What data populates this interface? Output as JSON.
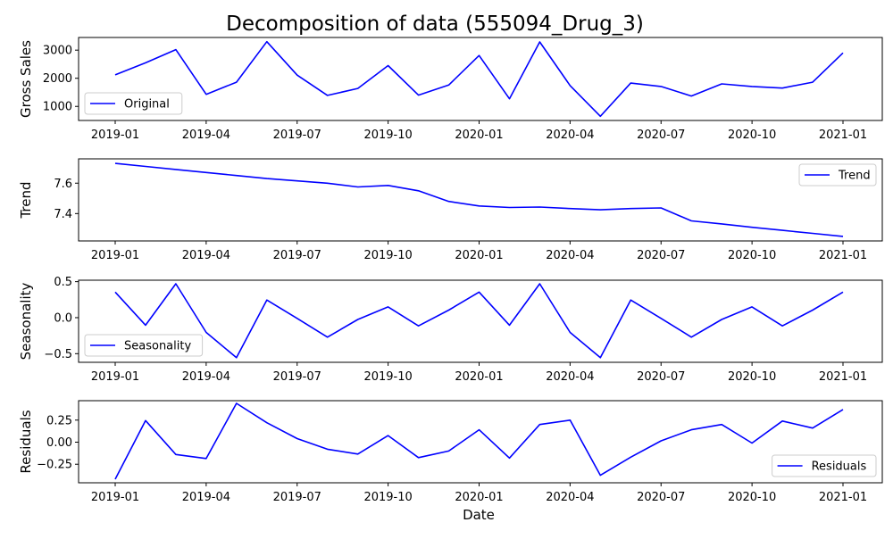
{
  "title": "Decomposition of data (555094_Drug_3)",
  "xlabel": "Date",
  "chart_data": [
    {
      "type": "line",
      "ylabel": "Gross Sales",
      "legend": {
        "label": "Original",
        "placement": "lower-left"
      },
      "color": "#0000ff",
      "x": [
        "2019-01",
        "2019-02",
        "2019-03",
        "2019-04",
        "2019-05",
        "2019-06",
        "2019-07",
        "2019-08",
        "2019-09",
        "2019-10",
        "2019-11",
        "2019-12",
        "2020-01",
        "2020-02",
        "2020-03",
        "2020-04",
        "2020-05",
        "2020-06",
        "2020-07",
        "2020-08",
        "2020-09",
        "2020-10",
        "2020-11",
        "2020-12",
        "2021-01"
      ],
      "values": [
        2120,
        2550,
        3020,
        1430,
        1860,
        3300,
        2110,
        1390,
        1640,
        2450,
        1400,
        1760,
        2810,
        1270,
        3290,
        1740,
        650,
        1830,
        1710,
        1370,
        1800,
        1710,
        1650,
        1860,
        2900
      ],
      "ylim": [
        500,
        3450
      ],
      "yticks": [
        1000,
        2000,
        3000
      ],
      "ytick_labels": [
        "1000",
        "2000",
        "3000"
      ]
    },
    {
      "type": "line",
      "ylabel": "Trend",
      "legend": {
        "label": "Trend",
        "placement": "upper-right"
      },
      "color": "#0000ff",
      "x": [
        "2019-01",
        "2019-02",
        "2019-03",
        "2019-04",
        "2019-05",
        "2019-06",
        "2019-07",
        "2019-08",
        "2019-09",
        "2019-10",
        "2019-11",
        "2019-12",
        "2020-01",
        "2020-02",
        "2020-03",
        "2020-04",
        "2020-05",
        "2020-06",
        "2020-07",
        "2020-08",
        "2020-09",
        "2020-10",
        "2020-11",
        "2020-12",
        "2021-01"
      ],
      "values": [
        7.73,
        7.71,
        7.69,
        7.67,
        7.65,
        7.63,
        7.615,
        7.6,
        7.575,
        7.585,
        7.55,
        7.48,
        7.45,
        7.44,
        7.443,
        7.433,
        7.425,
        7.433,
        7.437,
        7.352,
        7.332,
        7.31,
        7.29,
        7.27,
        7.25
      ],
      "ylim": [
        7.22,
        7.76
      ],
      "yticks": [
        7.4,
        7.6
      ],
      "ytick_labels": [
        "7.4",
        "7.6"
      ]
    },
    {
      "type": "line",
      "ylabel": "Seasonality",
      "legend": {
        "label": "Seasonality",
        "placement": "lower-left"
      },
      "color": "#0000ff",
      "x": [
        "2019-01",
        "2019-02",
        "2019-03",
        "2019-04",
        "2019-05",
        "2019-06",
        "2019-07",
        "2019-08",
        "2019-09",
        "2019-10",
        "2019-11",
        "2019-12",
        "2020-01",
        "2020-02",
        "2020-03",
        "2020-04",
        "2020-05",
        "2020-06",
        "2020-07",
        "2020-08",
        "2020-09",
        "2020-10",
        "2020-11",
        "2020-12",
        "2021-01"
      ],
      "values": [
        0.355,
        -0.105,
        0.47,
        -0.205,
        -0.555,
        0.245,
        -0.01,
        -0.27,
        -0.025,
        0.15,
        -0.115,
        0.105,
        0.355,
        -0.105,
        0.47,
        -0.205,
        -0.555,
        0.245,
        -0.01,
        -0.27,
        -0.025,
        0.15,
        -0.115,
        0.105,
        0.355
      ],
      "ylim": [
        -0.62,
        0.52
      ],
      "yticks": [
        -0.5,
        0.0,
        0.5
      ],
      "ytick_labels": [
        "−0.5",
        "0.0",
        "0.5"
      ]
    },
    {
      "type": "line",
      "ylabel": "Residuals",
      "legend": {
        "label": "Residuals",
        "placement": "lower-right"
      },
      "color": "#0000ff",
      "x": [
        "2019-01",
        "2019-02",
        "2019-03",
        "2019-04",
        "2019-05",
        "2019-06",
        "2019-07",
        "2019-08",
        "2019-09",
        "2019-10",
        "2019-11",
        "2019-12",
        "2020-01",
        "2020-02",
        "2020-03",
        "2020-04",
        "2020-05",
        "2020-06",
        "2020-07",
        "2020-08",
        "2020-09",
        "2020-10",
        "2020-11",
        "2020-12",
        "2021-01"
      ],
      "values": [
        -0.42,
        0.245,
        -0.14,
        -0.185,
        0.44,
        0.22,
        0.04,
        -0.08,
        -0.135,
        0.075,
        -0.175,
        -0.1,
        0.14,
        -0.18,
        0.2,
        0.25,
        -0.375,
        -0.17,
        0.015,
        0.14,
        0.2,
        -0.01,
        0.24,
        0.16,
        0.37
      ],
      "ylim": [
        -0.46,
        0.47
      ],
      "yticks": [
        -0.25,
        0.0,
        0.25
      ],
      "ytick_labels": [
        "−0.25",
        "0.00",
        "0.25"
      ]
    }
  ],
  "xticks": [
    "2019-01",
    "2019-04",
    "2019-07",
    "2019-10",
    "2020-01",
    "2020-04",
    "2020-07",
    "2020-10",
    "2021-01"
  ],
  "xtick_labels": [
    "2019-01",
    "2019-04",
    "2019-07",
    "2019-10",
    "2020-01",
    "2020-04",
    "2020-07",
    "2020-10",
    "2021-01"
  ]
}
